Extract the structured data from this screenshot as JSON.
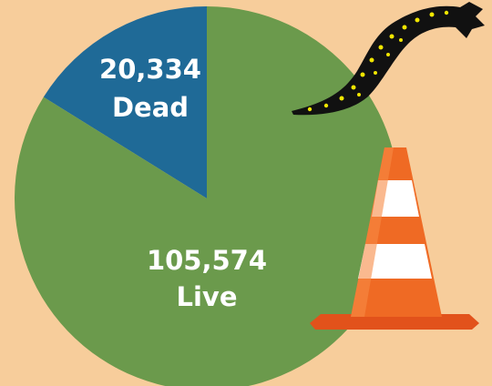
{
  "chart_data": {
    "type": "pie",
    "categories": [
      "Dead",
      "Live"
    ],
    "values": [
      20334,
      105574
    ],
    "value_labels": [
      "20,334",
      "105,574"
    ],
    "colors": [
      "#1f6a97",
      "#6b9a4c"
    ]
  }
}
